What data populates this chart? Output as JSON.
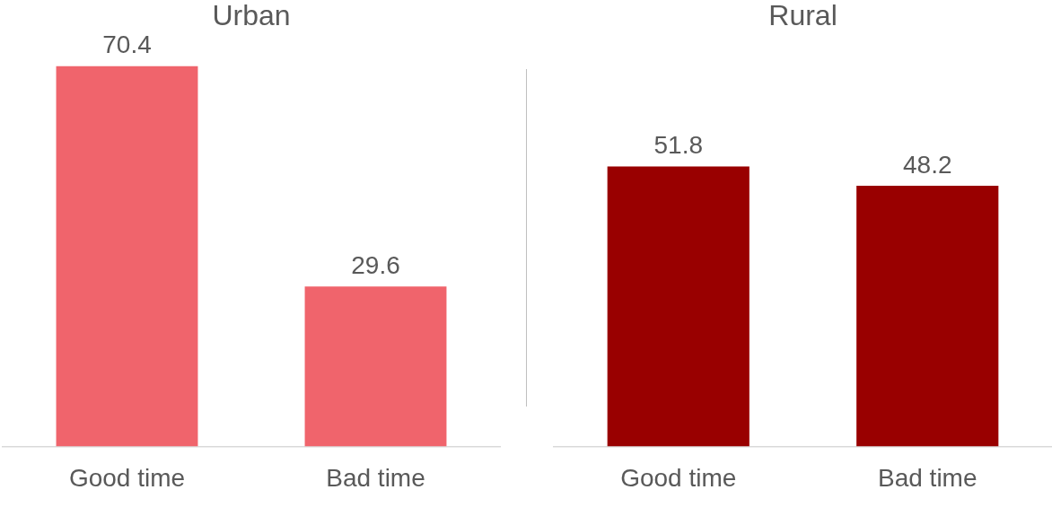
{
  "chart_data": [
    {
      "type": "bar",
      "title": "Urban",
      "categories": [
        "Good time",
        "Bad time"
      ],
      "values": [
        70.4,
        29.6
      ],
      "color": "#f0646c",
      "tick_labels": "x",
      "data_labels": true,
      "grid": false,
      "legend": false
    },
    {
      "type": "bar",
      "title": "Rural",
      "categories": [
        "Good time",
        "Bad time"
      ],
      "values": [
        51.8,
        48.2
      ],
      "color": "#990000",
      "tick_labels": "x",
      "data_labels": true,
      "grid": false,
      "legend": false
    }
  ]
}
